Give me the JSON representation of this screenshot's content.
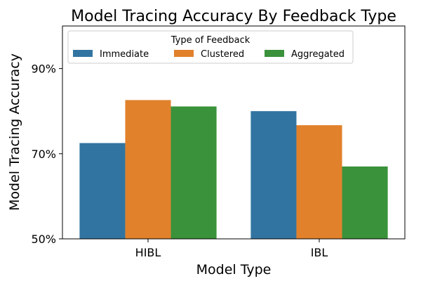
{
  "chart_data": {
    "type": "bar",
    "title": "Model Tracing Accuracy By Feedback Type",
    "xlabel": "Model Type",
    "ylabel": "Model Tracing Accuracy",
    "categories": [
      "HIBL",
      "IBL"
    ],
    "series": [
      {
        "name": "Immediate",
        "color": "#3274a1",
        "values": [
          0.725,
          0.8
        ]
      },
      {
        "name": "Clustered",
        "color": "#e1812c",
        "values": [
          0.826,
          0.767
        ]
      },
      {
        "name": "Aggregated",
        "color": "#3a923a",
        "values": [
          0.811,
          0.67
        ]
      }
    ],
    "ylim": [
      0.5,
      1.0
    ],
    "yticks": [
      {
        "value": 0.5,
        "label": "50%"
      },
      {
        "value": 0.7,
        "label": "70%"
      },
      {
        "value": 0.9,
        "label": "90%"
      }
    ],
    "legend": {
      "title": "Type of Feedback",
      "placement": "top-center"
    },
    "grid": false
  }
}
